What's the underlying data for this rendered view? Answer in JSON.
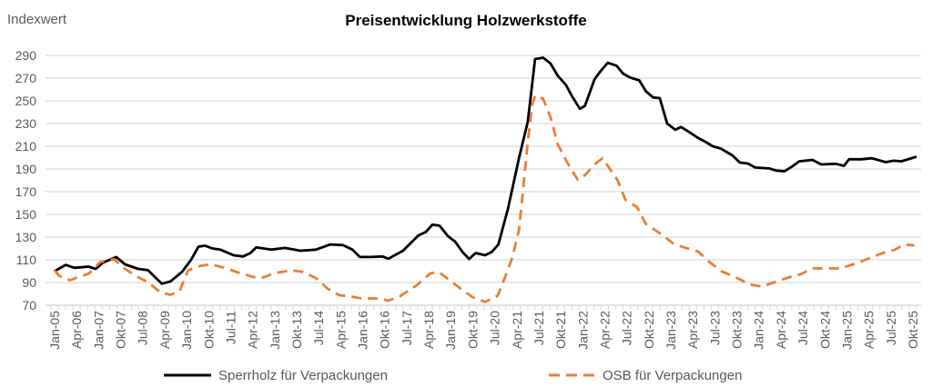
{
  "chart_data": {
    "type": "line",
    "title": "Preisentwicklung Holzwerkstoffe",
    "ylabel": "Indexwert",
    "xlabel": "",
    "ylim": [
      70,
      290
    ],
    "yticks": [
      70,
      90,
      110,
      130,
      150,
      170,
      190,
      210,
      230,
      250,
      270,
      290
    ],
    "grid": true,
    "legend_position": "bottom",
    "x_range": [
      0,
      117
    ],
    "x_labels": [
      "Jan-05",
      "Apr-06",
      "Jan-07",
      "Okt-07",
      "Jul-08",
      "Apr-09",
      "Jan-10",
      "Okt-10",
      "Jul-11",
      "Apr-12",
      "Jan-13",
      "Okt-13",
      "Jul-14",
      "Apr-15",
      "Jan-16",
      "Okt-16",
      "Jul-17",
      "Apr-18",
      "Jan-19",
      "Okt-19",
      "Jul-20",
      "Apr-21",
      "Jul-21",
      "Okt-21",
      "Jan-22",
      "Apr-22",
      "Jul-22",
      "Okt-22",
      "Jan-23",
      "Apr-23",
      "Jul-23",
      "Okt-23",
      "Jan-24",
      "Apr-24",
      "Jul-24",
      "Okt-24",
      "Jan-25",
      "Apr-25",
      "Jul-25",
      "Okt-25"
    ],
    "series": [
      {
        "name": "Sperrholz für Verpackungen",
        "color": "#000000",
        "style": "solid",
        "points": [
          [
            0,
            100
          ],
          [
            1.5,
            105.5
          ],
          [
            2.7,
            103
          ],
          [
            4.6,
            104
          ],
          [
            5.6,
            102
          ],
          [
            6.6,
            107.5
          ],
          [
            8.4,
            112.5
          ],
          [
            9.6,
            106
          ],
          [
            11.4,
            102
          ],
          [
            12.7,
            101
          ],
          [
            14.6,
            89
          ],
          [
            15.8,
            91
          ],
          [
            17.4,
            99.5
          ],
          [
            18.6,
            110
          ],
          [
            19.6,
            121.5
          ],
          [
            20.5,
            122.5
          ],
          [
            21.5,
            120
          ],
          [
            22.6,
            119
          ],
          [
            24.4,
            114
          ],
          [
            25.7,
            113
          ],
          [
            26.7,
            116
          ],
          [
            27.5,
            121
          ],
          [
            29.5,
            119
          ],
          [
            31.4,
            120.5
          ],
          [
            33.5,
            118
          ],
          [
            35.6,
            119
          ],
          [
            37.6,
            123.5
          ],
          [
            39.3,
            123
          ],
          [
            40.6,
            119
          ],
          [
            41.6,
            112.5
          ],
          [
            43.1,
            112.5
          ],
          [
            44.7,
            113
          ],
          [
            45.5,
            111
          ],
          [
            47.5,
            118
          ],
          [
            49.6,
            131.5
          ],
          [
            50.6,
            134.5
          ],
          [
            51.5,
            141
          ],
          [
            52.5,
            140
          ],
          [
            53.6,
            131
          ],
          [
            54.6,
            126
          ],
          [
            55.6,
            117
          ],
          [
            56.5,
            110.7
          ],
          [
            57.4,
            116
          ],
          [
            58.7,
            114
          ],
          [
            59.6,
            117
          ],
          [
            60.5,
            123.6
          ],
          [
            61.8,
            155
          ],
          [
            63.3,
            199.4
          ],
          [
            64.5,
            231.7
          ],
          [
            65.5,
            286.8
          ],
          [
            66.6,
            288
          ],
          [
            67.6,
            283
          ],
          [
            68.6,
            272
          ],
          [
            69.7,
            264
          ],
          [
            70.5,
            254.5
          ],
          [
            71.6,
            243
          ],
          [
            72.3,
            245.6
          ],
          [
            73.6,
            269
          ],
          [
            74.4,
            276
          ],
          [
            75.4,
            283.5
          ],
          [
            76.6,
            281
          ],
          [
            77.5,
            274
          ],
          [
            78.4,
            270.6
          ],
          [
            79.7,
            268
          ],
          [
            80.6,
            258.5
          ],
          [
            81.6,
            253
          ],
          [
            82.5,
            252.4
          ],
          [
            83.5,
            230
          ],
          [
            84.6,
            224.6
          ],
          [
            85.4,
            227
          ],
          [
            86.5,
            222.6
          ],
          [
            87.7,
            217.4
          ],
          [
            88.7,
            214
          ],
          [
            89.7,
            210
          ],
          [
            90.8,
            208
          ],
          [
            92.4,
            202
          ],
          [
            93.4,
            195.7
          ],
          [
            94.5,
            194.8
          ],
          [
            95.5,
            191.3
          ],
          [
            97.4,
            190.5
          ],
          [
            98.4,
            188.6
          ],
          [
            99.5,
            188
          ],
          [
            100.5,
            192
          ],
          [
            101.5,
            196.7
          ],
          [
            103.3,
            198
          ],
          [
            104.5,
            194
          ],
          [
            106.5,
            194.6
          ],
          [
            107.6,
            192.7
          ],
          [
            108.3,
            198.6
          ],
          [
            110,
            198.6
          ],
          [
            111.4,
            199.4
          ],
          [
            113.3,
            196
          ],
          [
            114.4,
            197.3
          ],
          [
            115.4,
            196.7
          ],
          [
            117.5,
            200.8
          ]
        ]
      },
      {
        "name": "OSB für Verpackungen",
        "color": "#ED7D31",
        "style": "dashed",
        "points": [
          [
            0,
            100.7
          ],
          [
            0.6,
            96
          ],
          [
            2.1,
            92
          ],
          [
            2.9,
            94
          ],
          [
            4.7,
            98
          ],
          [
            6.2,
            108
          ],
          [
            8.1,
            110.5
          ],
          [
            9.6,
            102
          ],
          [
            11.2,
            95.3
          ],
          [
            12.8,
            90
          ],
          [
            14.5,
            81
          ],
          [
            15.8,
            79.3
          ],
          [
            17,
            82
          ],
          [
            18.2,
            100.7
          ],
          [
            19.9,
            104.7
          ],
          [
            21.3,
            106
          ],
          [
            23.2,
            103
          ],
          [
            24.8,
            99.3
          ],
          [
            27.3,
            94.5
          ],
          [
            28.2,
            94
          ],
          [
            30.1,
            98.5
          ],
          [
            32.3,
            100.7
          ],
          [
            33.9,
            99.3
          ],
          [
            35.6,
            94
          ],
          [
            37.2,
            84.7
          ],
          [
            38.8,
            78.8
          ],
          [
            40.1,
            78
          ],
          [
            41.8,
            76
          ],
          [
            44.3,
            76
          ],
          [
            45.5,
            74
          ],
          [
            47.1,
            78
          ],
          [
            49.3,
            87.3
          ],
          [
            51.2,
            98
          ],
          [
            52.4,
            99.3
          ],
          [
            53.7,
            92.7
          ],
          [
            55.8,
            82.5
          ],
          [
            57.1,
            76.7
          ],
          [
            58.7,
            73
          ],
          [
            60.4,
            78.4
          ],
          [
            61.4,
            94.6
          ],
          [
            62.4,
            112
          ],
          [
            63.3,
            136.2
          ],
          [
            63.9,
            173.9
          ],
          [
            64.5,
            214
          ],
          [
            65.1,
            246.4
          ],
          [
            65.5,
            254.5
          ],
          [
            66.6,
            251.8
          ],
          [
            67.6,
            235.7
          ],
          [
            68.6,
            211.5
          ],
          [
            69.9,
            195.4
          ],
          [
            71.3,
            180.6
          ],
          [
            72.3,
            184.6
          ],
          [
            73.6,
            194
          ],
          [
            74.7,
            199.4
          ],
          [
            75.7,
            190
          ],
          [
            76.7,
            180.6
          ],
          [
            77.8,
            163
          ],
          [
            79.4,
            156.4
          ],
          [
            80.6,
            141.6
          ],
          [
            82.8,
            132.2
          ],
          [
            84.4,
            124
          ],
          [
            86,
            120.6
          ],
          [
            87.7,
            117.4
          ],
          [
            89.3,
            108
          ],
          [
            90.9,
            100
          ],
          [
            93.1,
            93.8
          ],
          [
            94.7,
            88.4
          ],
          [
            96.4,
            86.5
          ],
          [
            98,
            90
          ],
          [
            100.1,
            94.6
          ],
          [
            101.7,
            97.3
          ],
          [
            103.3,
            102.6
          ],
          [
            105.5,
            102.4
          ],
          [
            107.1,
            102.4
          ],
          [
            109.2,
            106.7
          ],
          [
            111.3,
            112
          ],
          [
            112.9,
            116
          ],
          [
            114.5,
            118.8
          ],
          [
            115.8,
            123.3
          ],
          [
            117.2,
            122.8
          ]
        ]
      }
    ]
  }
}
